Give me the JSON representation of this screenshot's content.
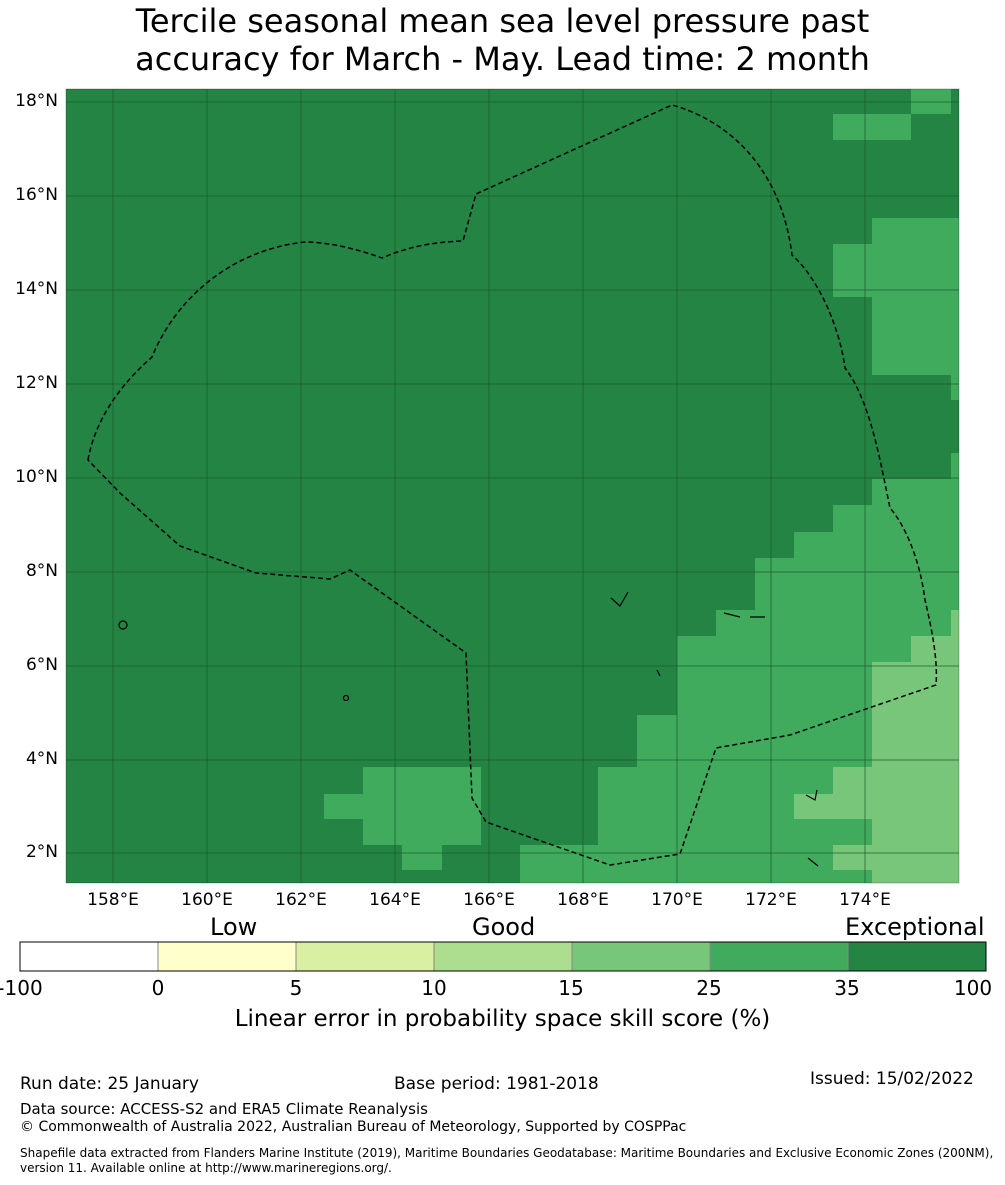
{
  "title": {
    "line1": "Tercile seasonal mean sea level pressure past",
    "line2": "accuracy for March - May. Lead time: 2 month"
  },
  "map": {
    "lat_labels": [
      "18°N",
      "16°N",
      "14°N",
      "12°N",
      "10°N",
      "8°N",
      "6°N",
      "4°N",
      "2°N"
    ],
    "lon_labels": [
      "158°E",
      "160°E",
      "162°E",
      "164°E",
      "166°E",
      "168°E",
      "170°E",
      "172°E",
      "174°E"
    ]
  },
  "colorbar": {
    "categories": {
      "low": "Low",
      "good": "Good",
      "exceptional": "Exceptional"
    },
    "ticks": [
      "-100",
      "0",
      "5",
      "10",
      "15",
      "25",
      "35",
      "100"
    ],
    "colors": [
      "#ffffff",
      "#ffffcc",
      "#d9f0a3",
      "#addd8e",
      "#78c679",
      "#41ab5d",
      "#238443"
    ],
    "label": "Linear error in probability space skill score (%)"
  },
  "footer": {
    "run_date": "Run date: 25 January",
    "base_period": "Base period: 1981-2018",
    "issued": "Issued: 15/02/2022",
    "data_source": "Data source: ACCESS-S2 and ERA5 Climate Reanalysis",
    "copyright": "© Commonwealth of Australia 2022, Australian Bureau of Meteorology, Supported by COSPPac",
    "shapefile_line1": "Shapefile data extracted from Flanders Marine Institute (2019), Maritime Boundaries Geodatabase: Maritime Boundaries and Exclusive Economic Zones (200NM),",
    "shapefile_line2": "version 11. Available online at http://www.marineregions.org/."
  }
}
